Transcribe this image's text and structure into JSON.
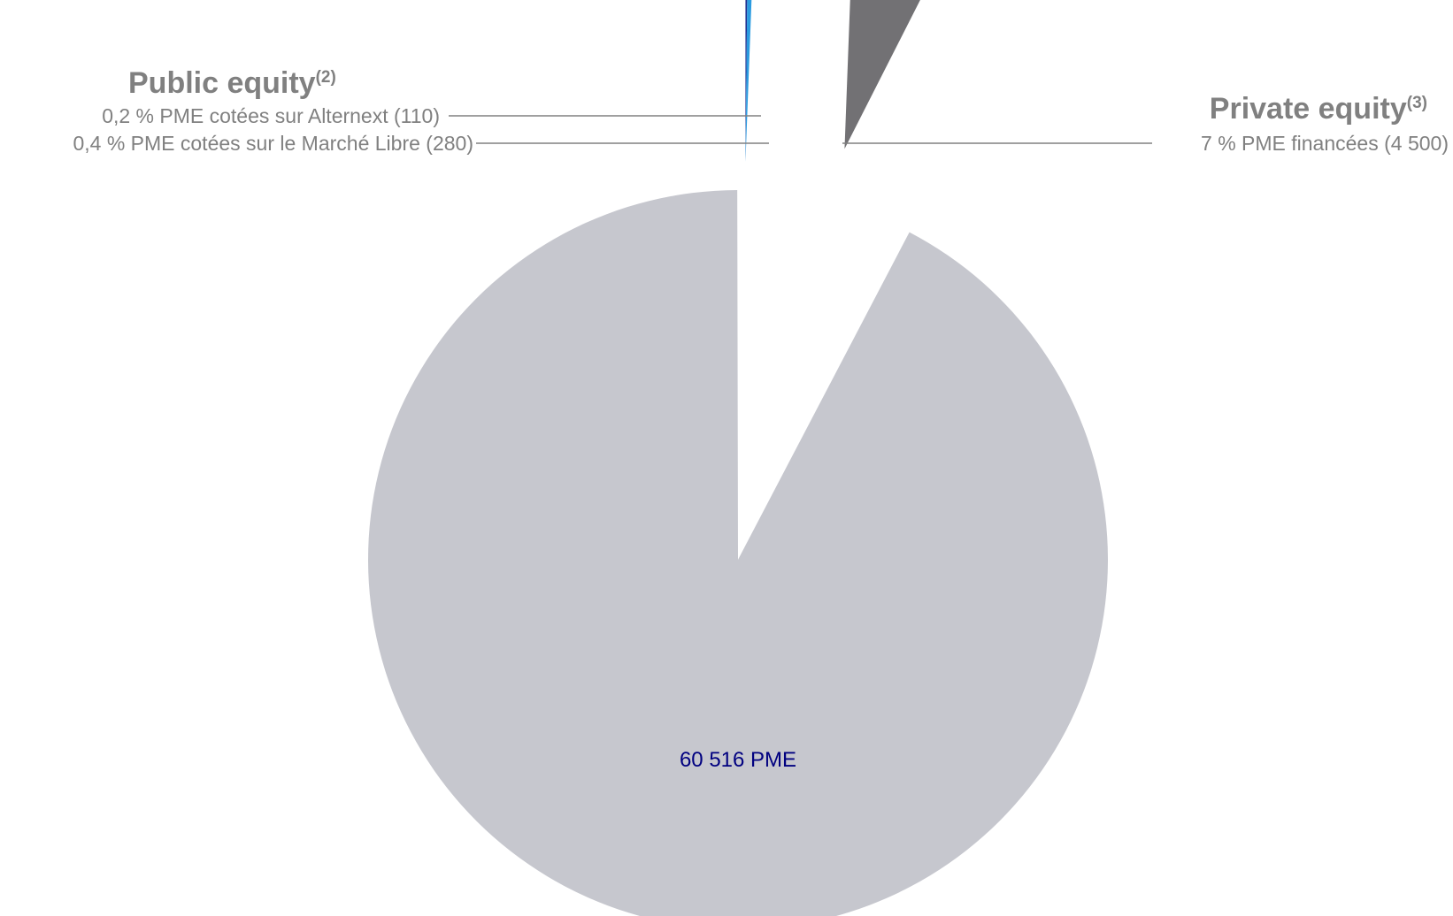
{
  "chart_data": {
    "type": "pie",
    "slices": [
      {
        "label": "0,2 % PME cotées sur Alternext (110)",
        "value": 110,
        "percent": 0.2,
        "color": "#1f2f8f",
        "group": "public"
      },
      {
        "label": "0,4 % PME cotées sur le Marché Libre (280)",
        "value": 280,
        "percent": 0.4,
        "color": "#2a9be0",
        "group": "public"
      },
      {
        "label": "7 % PME financées (4 500)",
        "value": 4500,
        "percent": 7,
        "color": "#727174",
        "group": "private"
      },
      {
        "label": "60 516 PME",
        "value": 60516,
        "color": "#c6c7ce",
        "group": "rest"
      }
    ],
    "groups": {
      "public": {
        "title": "Public equity",
        "sup": "(2)"
      },
      "private": {
        "title": "Private equity",
        "sup": "(3)"
      }
    },
    "exploded": [
      "public",
      "private"
    ]
  }
}
